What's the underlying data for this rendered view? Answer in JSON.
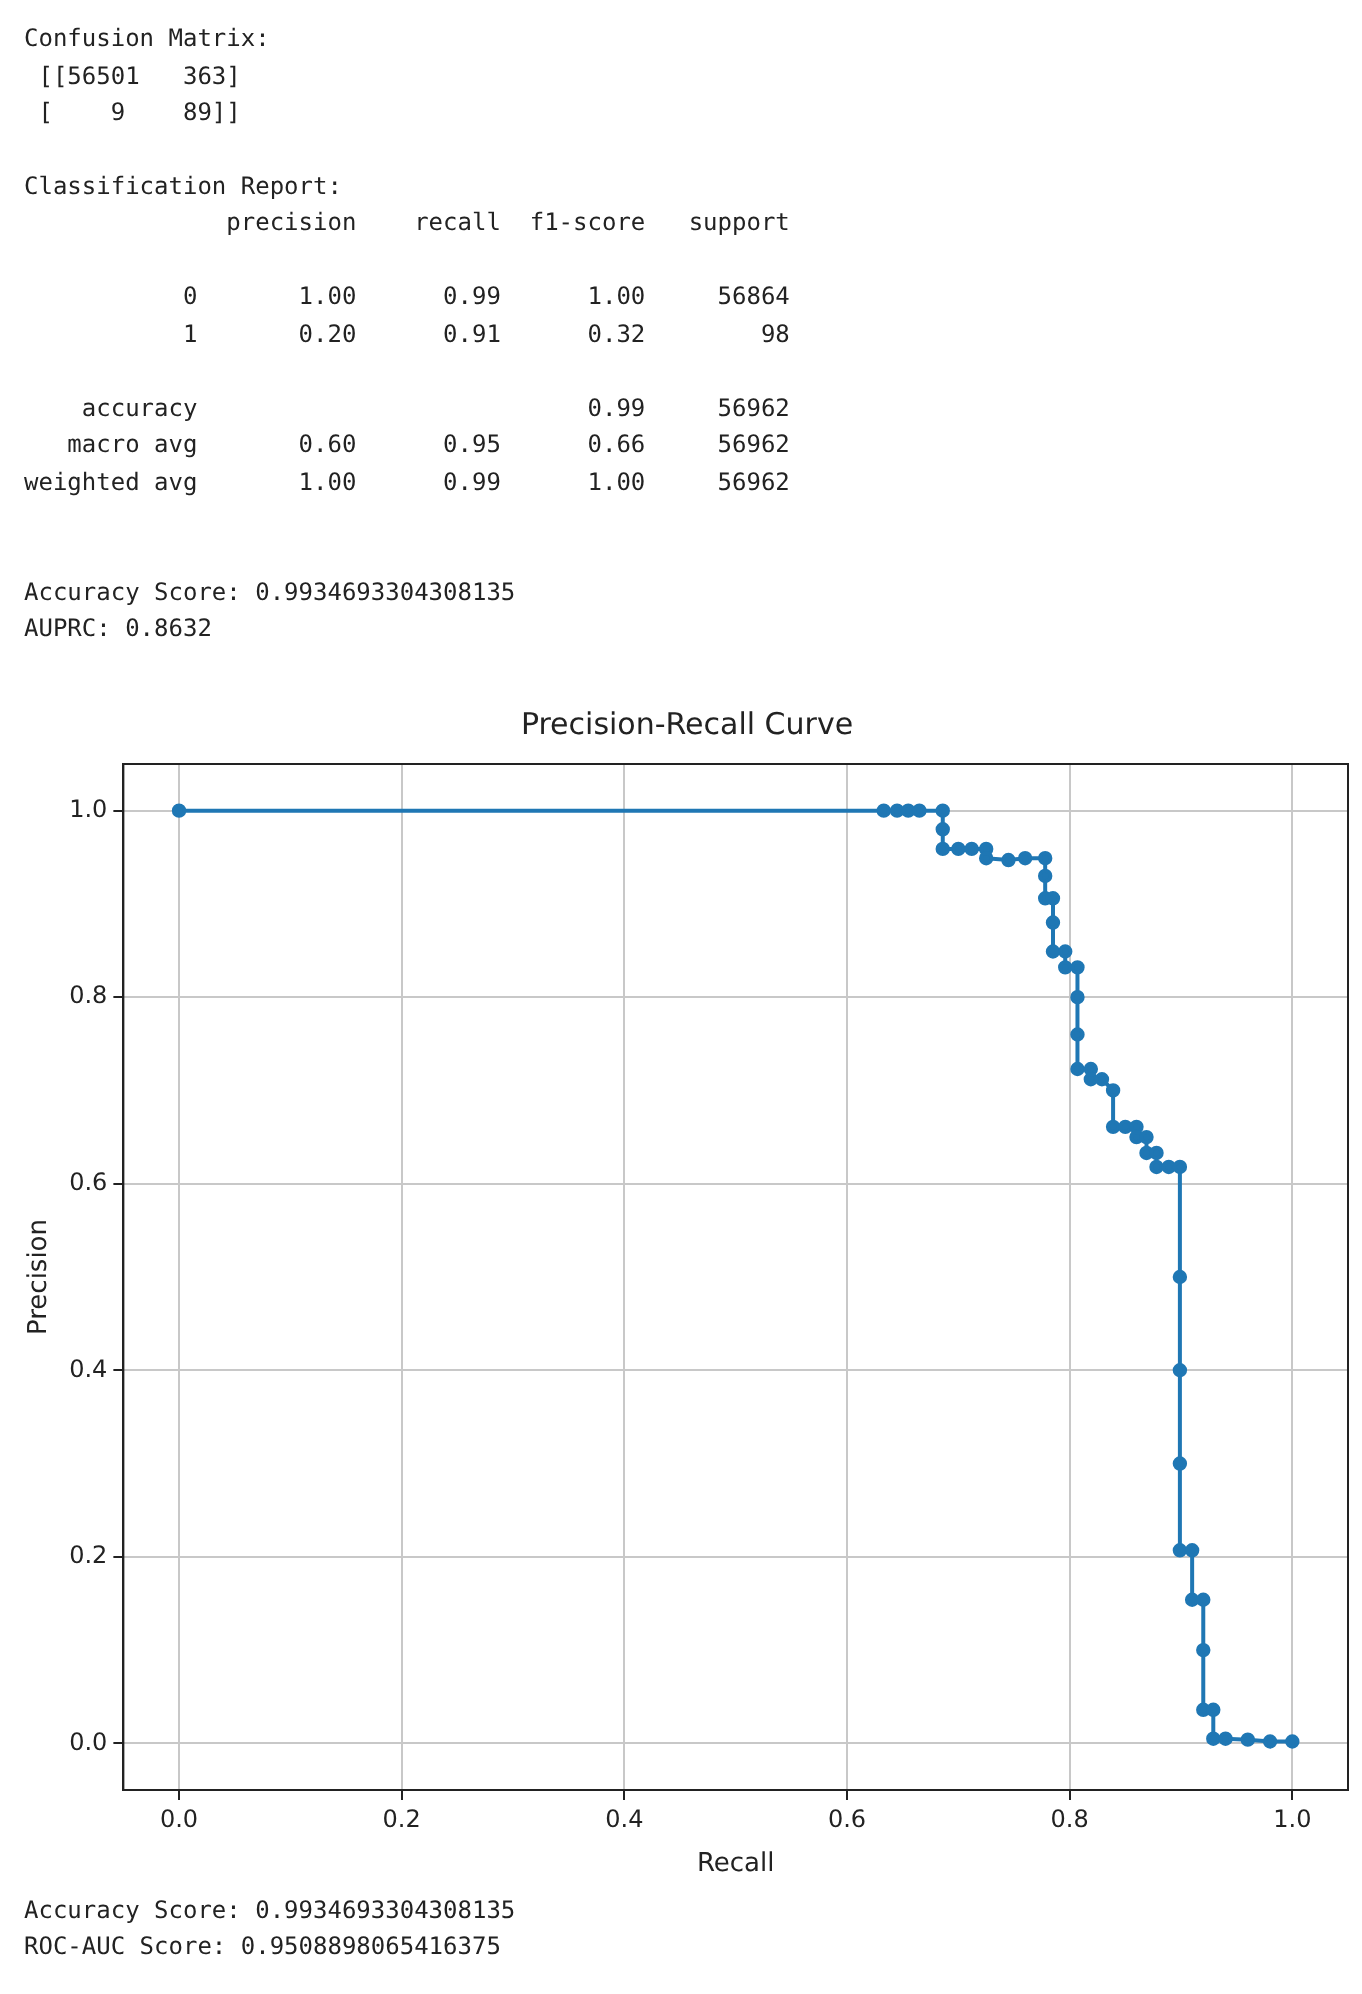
{
  "chart_data": [
    {
      "type": "other",
      "annotations": [
        "Confusion Matrix:\n [[56501   363]\n [    9    89]]",
        "Classification Report:\n              precision    recall  f1-score   support\n\n           0       1.00      0.99      1.00     56864\n           1       0.20      0.91      0.32        98\n\n    accuracy                           0.99     56962\n   macro avg       0.60      0.95      0.66     56962\nweighted avg       1.00      0.99      1.00     56962\n\n",
        "Accuracy Score: 0.9934693304308135\nAUPRC: 0.8632"
      ]
    },
    {
      "type": "line",
      "title": "Precision-Recall Curve",
      "xlabel": "Recall",
      "ylabel": "Precision",
      "xlim": [
        -0.05,
        1.05
      ],
      "ylim": [
        -0.05,
        1.05
      ],
      "xticks": [
        {
          "value": 0,
          "label": "0.0"
        },
        {
          "value": 0.2,
          "label": "0.2"
        },
        {
          "value": 0.4,
          "label": "0.4"
        },
        {
          "value": 0.6,
          "label": "0.6"
        },
        {
          "value": 0.8,
          "label": "0.8"
        },
        {
          "value": 1,
          "label": "1.0"
        }
      ],
      "yticks": [
        {
          "value": 0,
          "label": "0.0"
        },
        {
          "value": 0.2,
          "label": "0.2"
        },
        {
          "value": 0.4,
          "label": "0.4"
        },
        {
          "value": 0.6,
          "label": "0.6"
        },
        {
          "value": 0.8,
          "label": "0.8"
        },
        {
          "value": 1,
          "label": "1.0"
        }
      ],
      "grid": true,
      "legend": false,
      "marker": "circle",
      "line_style": "solid",
      "series": [
        {
          "color": "#1f77b4",
          "x": [
            0,
            0.633,
            0.645,
            0.655,
            0.665,
            0.686,
            0.686,
            0.686,
            0.7,
            0.712,
            0.725,
            0.725,
            0.745,
            0.76,
            0.778,
            0.778,
            0.778,
            0.785,
            0.785,
            0.785,
            0.796,
            0.796,
            0.807,
            0.807,
            0.807,
            0.807,
            0.819,
            0.819,
            0.829,
            0.839,
            0.839,
            0.85,
            0.86,
            0.86,
            0.869,
            0.869,
            0.878,
            0.878,
            0.889,
            0.899,
            0.899,
            0.899,
            0.899,
            0.899,
            0.91,
            0.91,
            0.92,
            0.92,
            0.92,
            0.929,
            0.929,
            0.94,
            0.96,
            0.98,
            1.0
          ],
          "values": [
            1,
            1,
            1,
            1,
            1,
            1,
            0.98,
            0.959,
            0.959,
            0.959,
            0.959,
            0.949,
            0.947,
            0.949,
            0.949,
            0.93,
            0.906,
            0.906,
            0.88,
            0.849,
            0.849,
            0.832,
            0.832,
            0.8,
            0.76,
            0.723,
            0.723,
            0.712,
            0.712,
            0.7,
            0.661,
            0.661,
            0.661,
            0.65,
            0.65,
            0.633,
            0.633,
            0.618,
            0.618,
            0.618,
            0.5,
            0.4,
            0.3,
            0.207,
            0.207,
            0.154,
            0.154,
            0.1,
            0.036,
            0.036,
            0.005,
            0.005,
            0.004,
            0.002,
            0.002
          ]
        }
      ]
    },
    {
      "type": "other",
      "annotations": [
        "Accuracy Score: 0.9934693304308135\nROC-AUC Score: 0.9508898065416375"
      ]
    }
  ]
}
